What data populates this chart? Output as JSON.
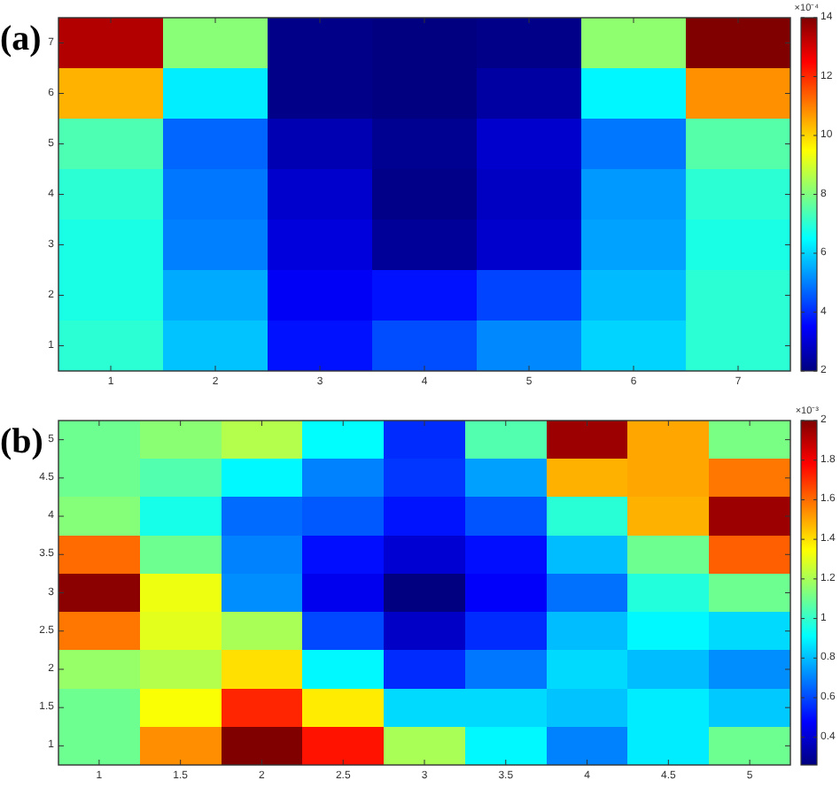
{
  "chart_data": [
    {
      "type": "heatmap",
      "title": "(a)",
      "categories": [
        "1",
        "2",
        "3",
        "4",
        "5",
        "6",
        "7"
      ],
      "y_categories": [
        "7",
        "6",
        "5",
        "4",
        "3",
        "2",
        "1"
      ],
      "cells": [
        [
          13.4,
          8.1,
          2.1,
          2.0,
          2.1,
          8.2,
          14
        ],
        [
          10.4,
          6.3,
          2.1,
          2.0,
          2.4,
          6.4,
          10.8
        ],
        [
          7.4,
          4.7,
          2.6,
          2.2,
          2.9,
          4.9,
          7.5
        ],
        [
          7.0,
          4.9,
          2.9,
          2.1,
          2.8,
          5.3,
          7.0
        ],
        [
          6.8,
          5.0,
          3.1,
          2.3,
          2.9,
          5.4,
          6.8
        ],
        [
          6.8,
          5.5,
          3.4,
          3.7,
          4.3,
          5.7,
          7.0
        ],
        [
          7.0,
          5.8,
          3.7,
          4.4,
          5.1,
          6.0,
          7.0
        ]
      ],
      "clim": [
        2,
        14
      ],
      "cticks": [
        2,
        4,
        6,
        8,
        10,
        12,
        14
      ],
      "clabel": "×10⁻⁴"
    },
    {
      "type": "heatmap",
      "title": "(b)",
      "categories": [
        "1",
        "1.5",
        "2",
        "2.5",
        "3",
        "3.5",
        "4",
        "4.5",
        "5"
      ],
      "y_categories": [
        "5",
        "4.5",
        "4",
        "3.5",
        "3",
        "2.5",
        "2",
        "1.5",
        "1"
      ],
      "cells": [
        [
          1.1,
          1.15,
          1.22,
          0.91,
          0.55,
          1.05,
          1.95,
          1.5,
          1.12
        ],
        [
          1.1,
          1.05,
          0.9,
          0.7,
          0.57,
          0.75,
          1.48,
          1.5,
          1.58
        ],
        [
          1.14,
          0.95,
          0.66,
          0.63,
          0.51,
          0.62,
          0.98,
          1.48,
          1.95
        ],
        [
          1.6,
          1.1,
          0.7,
          0.5,
          0.4,
          0.5,
          0.8,
          1.1,
          1.62
        ],
        [
          1.98,
          1.32,
          0.72,
          0.45,
          0.26,
          0.47,
          0.67,
          0.97,
          1.1
        ],
        [
          1.58,
          1.3,
          1.2,
          0.6,
          0.38,
          0.55,
          0.8,
          0.9,
          0.85
        ],
        [
          1.17,
          1.22,
          1.4,
          0.9,
          0.55,
          0.68,
          0.85,
          0.8,
          0.72
        ],
        [
          1.1,
          1.34,
          1.72,
          1.38,
          0.85,
          0.85,
          0.81,
          0.88,
          0.82
        ],
        [
          1.1,
          1.54,
          2.0,
          1.75,
          1.2,
          0.9,
          0.7,
          0.88,
          1.1
        ]
      ],
      "clim": [
        0.26,
        2
      ],
      "cticks": [
        0.4,
        0.6,
        0.8,
        1,
        1.2,
        1.4,
        1.6,
        1.8,
        2
      ],
      "clabel": "×10⁻³"
    }
  ]
}
